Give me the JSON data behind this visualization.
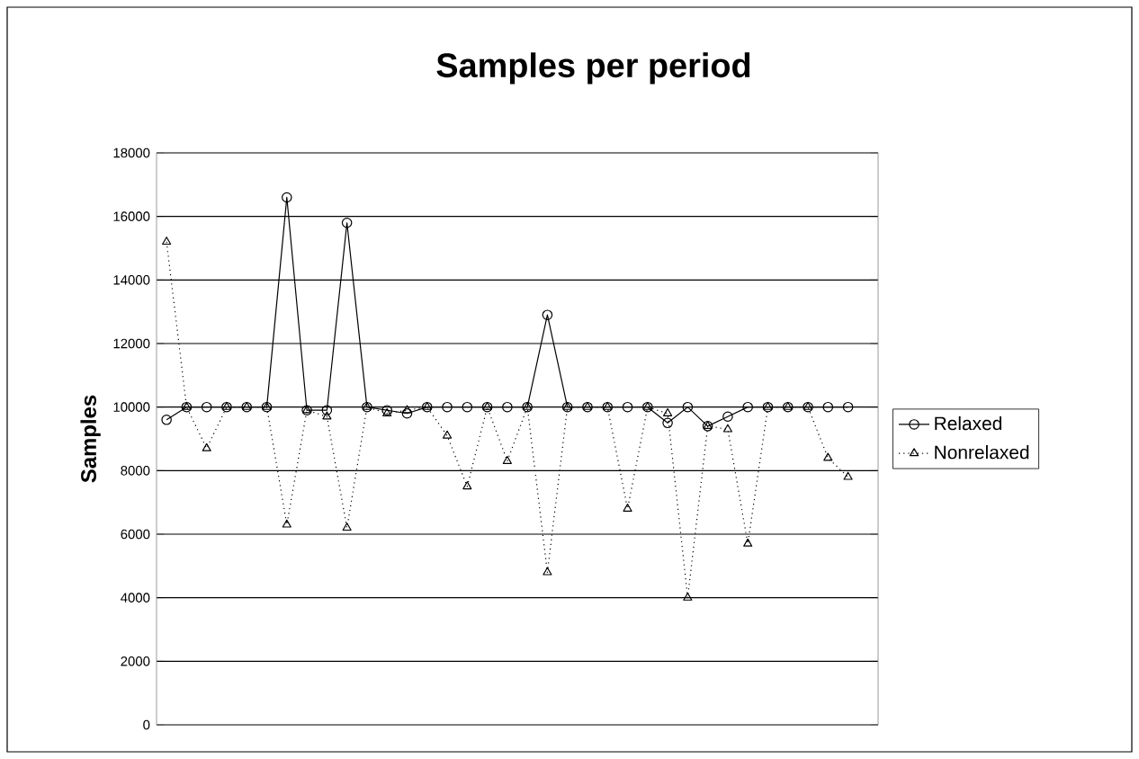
{
  "chart_data": {
    "type": "line",
    "title": "Samples per period",
    "ylabel": "Samples",
    "categories": [
      null,
      null,
      null,
      null,
      null,
      null,
      null,
      null,
      null,
      null,
      null,
      null,
      null,
      null,
      null,
      null,
      null,
      null,
      null,
      null,
      null,
      null,
      null,
      null,
      null,
      null,
      null,
      null,
      null,
      null,
      null,
      null,
      null,
      null,
      null,
      null
    ],
    "series": [
      {
        "name": "Relaxed",
        "color": "#000000",
        "marker": "circle",
        "line_style": "solid",
        "values": [
          9600,
          10000,
          10000,
          10000,
          10000,
          10000,
          16600,
          9900,
          9900,
          15800,
          10000,
          9900,
          9800,
          10000,
          10000,
          10000,
          10000,
          10000,
          10000,
          12900,
          10000,
          10000,
          10000,
          10000,
          10000,
          9500,
          10000,
          9400,
          9700,
          10000,
          10000,
          10000,
          10000,
          10000,
          10000,
          null
        ]
      },
      {
        "name": "Nonrelaxed",
        "color": "#000000",
        "marker": "triangle",
        "line_style": "dotted",
        "values": [
          15200,
          10000,
          8700,
          10000,
          10000,
          10000,
          6300,
          9900,
          9700,
          6200,
          10000,
          9800,
          9900,
          10000,
          9100,
          7500,
          10000,
          8300,
          10000,
          4800,
          10000,
          10000,
          10000,
          6800,
          10000,
          9800,
          4000,
          9400,
          9300,
          5700,
          10000,
          10000,
          10000,
          8400,
          7800,
          null
        ]
      }
    ],
    "ylim": [
      0,
      18000
    ],
    "yticks": [
      0,
      2000,
      4000,
      6000,
      8000,
      10000,
      12000,
      14000,
      16000,
      18000
    ],
    "grid": "y",
    "legend": "right"
  }
}
